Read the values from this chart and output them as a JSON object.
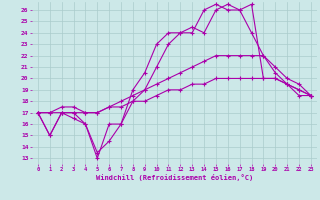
{
  "title": "",
  "xlabel": "Windchill (Refroidissement éolien,°C)",
  "background_color": "#cce8e8",
  "grid_color": "#aacccc",
  "line_color": "#aa00aa",
  "x_ticks": [
    0,
    1,
    2,
    3,
    4,
    5,
    6,
    7,
    8,
    9,
    10,
    11,
    12,
    13,
    14,
    15,
    16,
    17,
    18,
    19,
    20,
    21,
    22,
    23
  ],
  "y_ticks": [
    13,
    14,
    15,
    16,
    17,
    18,
    19,
    20,
    21,
    22,
    23,
    24,
    25,
    26
  ],
  "xlim": [
    -0.5,
    23.5
  ],
  "ylim": [
    12.5,
    26.7
  ],
  "series": [
    [
      17,
      15,
      17,
      16.5,
      16,
      13,
      16,
      16,
      19,
      20.5,
      23,
      24,
      24,
      24.5,
      24,
      26,
      26.5,
      26,
      26.5,
      20,
      20,
      19.5,
      19,
      18.5
    ],
    [
      17,
      15,
      17,
      17,
      16,
      13.5,
      14.5,
      16,
      18,
      19,
      21,
      23,
      24,
      24,
      26,
      26.5,
      26,
      26,
      24,
      22,
      20.5,
      19.5,
      19,
      18.5
    ],
    [
      17,
      17,
      17.5,
      17.5,
      17,
      17,
      17.5,
      18,
      18.5,
      19,
      19.5,
      20,
      20.5,
      21,
      21.5,
      22,
      22,
      22,
      22,
      22,
      21,
      20,
      19.5,
      18.5
    ],
    [
      17,
      17,
      17,
      17,
      17,
      17,
      17.5,
      17.5,
      18,
      18,
      18.5,
      19,
      19,
      19.5,
      19.5,
      20,
      20,
      20,
      20,
      20,
      20,
      19.5,
      18.5,
      18.5
    ]
  ]
}
